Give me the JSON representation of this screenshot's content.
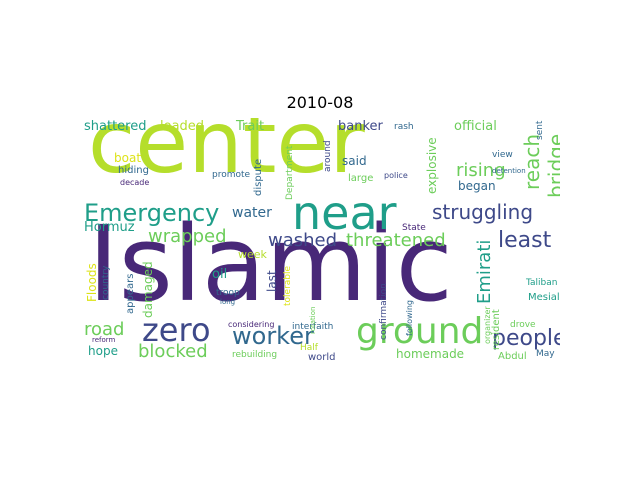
{
  "title": "2010-08",
  "colors": {
    "lime": "#b5de2b",
    "green": "#6ccd5a",
    "teal": "#1f9e89",
    "blue": "#31688e",
    "indigo": "#3e4989",
    "purple": "#482878",
    "yellow": "#dde318"
  },
  "words": {
    "islamic": "Islamic",
    "center": "center",
    "near": "near",
    "ground": "ground",
    "zero": "zero",
    "emergency": "Emergency",
    "struggling": "struggling",
    "worker": "worker",
    "people": "people",
    "least": "least",
    "reach": "reach",
    "bridge": "bridge",
    "rising": "rising",
    "washed": "washed",
    "threatened": "threatened",
    "wrapped": "wrapped",
    "blocked": "blocked",
    "road": "road",
    "water": "water",
    "emirati": "Emirati",
    "hormuz": "Hormuz",
    "floods": "Floods",
    "damaged": "damaged",
    "oil": "oil",
    "week": "week",
    "last": "last",
    "hope": "hope",
    "homemade": "homemade",
    "shattered": "shattered",
    "loaded": "loaded",
    "trait": "Trait",
    "banker": "banker",
    "rash": "rash",
    "official": "official",
    "explosive": "explosive",
    "began": "began",
    "said": "said",
    "large": "large",
    "police": "police",
    "view": "view",
    "sent": "sent",
    "detention": "detention",
    "boat": "boat",
    "hiding": "hiding",
    "decade": "decade",
    "promote": "promote",
    "dispute": "dispute",
    "department": "Department",
    "around": "around",
    "state": "State",
    "confirmation": "confirmation",
    "resident": "resident",
    "taliban": "Taliban",
    "mesial": "Mesial",
    "drove": "drove",
    "abdul": "Abdul",
    "may": "May",
    "organizer": "organizer",
    "following": "following",
    "interfaith": "interfaith",
    "considering": "considering",
    "rebuilding": "rebuilding",
    "half": "Half",
    "world": "world",
    "troop": "troop",
    "long": "long",
    "tolerable": "tolerable",
    "rotation": "rotation",
    "appears": "appears",
    "country": "country",
    "reform": "reform"
  }
}
